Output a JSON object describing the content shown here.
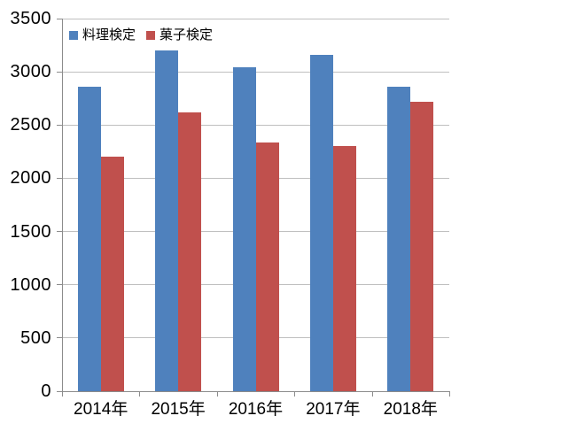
{
  "chart_data": {
    "type": "bar",
    "title": "",
    "categories": [
      "2014年",
      "2015年",
      "2016年",
      "2017年",
      "2018年"
    ],
    "series": [
      {
        "name": "料理検定",
        "color": "#4f81bd",
        "values": [
          2860,
          3200,
          3040,
          3160,
          2860
        ]
      },
      {
        "name": "菓子検定",
        "color": "#c0504d",
        "values": [
          2200,
          2620,
          2340,
          2300,
          2720
        ]
      }
    ],
    "xlabel": "",
    "ylabel": "",
    "ylim": [
      0,
      3500
    ],
    "ytick_step": 500,
    "yticks": [
      0,
      500,
      1000,
      1500,
      2000,
      2500,
      3000,
      3500
    ],
    "grid": true,
    "legend_position": "top-left-inside",
    "colors": {
      "gridline": "#bfbfbf",
      "axis": "#8c8c8c",
      "text": "#000000",
      "background": "#ffffff"
    }
  }
}
